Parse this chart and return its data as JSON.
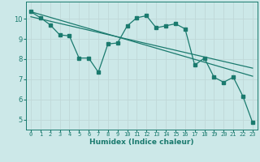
{
  "title": "",
  "xlabel": "Humidex (Indice chaleur)",
  "bg_color": "#cce8e8",
  "grid_color": "#b8d8d8",
  "line_color": "#1a7a6e",
  "xlim": [
    -0.5,
    23.5
  ],
  "ylim": [
    4.5,
    10.85
  ],
  "xtick_labels": [
    "0",
    "1",
    "2",
    "3",
    "4",
    "5",
    "6",
    "7",
    "8",
    "9",
    "10",
    "11",
    "12",
    "13",
    "14",
    "15",
    "16",
    "17",
    "18",
    "19",
    "20",
    "21",
    "22",
    "23"
  ],
  "yticks": [
    5,
    6,
    7,
    8,
    9,
    10
  ],
  "series1_x": [
    0,
    1,
    2,
    3,
    4,
    5,
    6,
    7,
    8,
    9,
    10,
    11,
    12,
    13,
    14,
    15,
    16,
    17,
    18,
    19,
    20,
    21,
    22,
    23
  ],
  "series1_y": [
    10.35,
    10.05,
    9.7,
    9.2,
    9.15,
    8.05,
    8.05,
    7.35,
    8.75,
    8.8,
    9.65,
    10.05,
    10.15,
    9.55,
    9.65,
    9.75,
    9.5,
    7.7,
    8.05,
    7.1,
    6.85,
    7.1,
    6.15,
    4.85
  ],
  "series2_x": [
    0,
    23
  ],
  "series2_y": [
    10.35,
    7.15
  ],
  "series3_x": [
    0,
    23
  ],
  "series3_y": [
    10.1,
    7.55
  ]
}
